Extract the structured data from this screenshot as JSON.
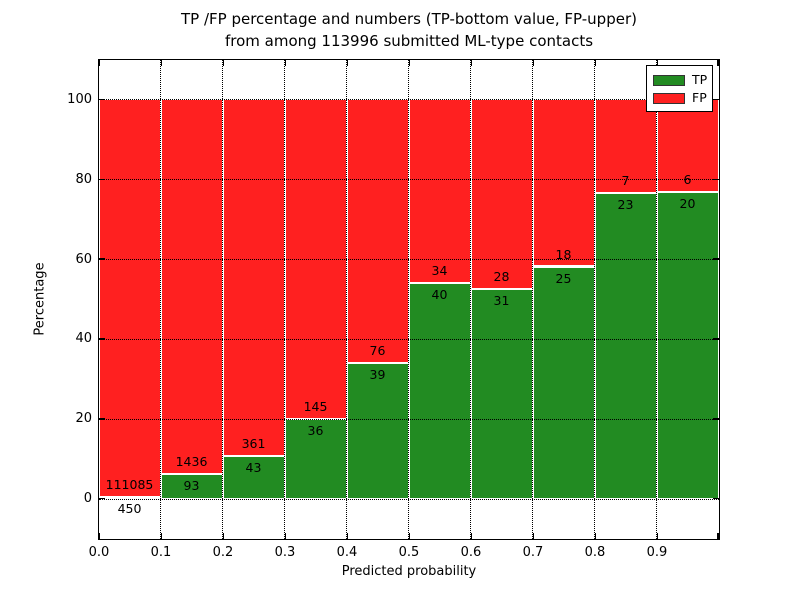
{
  "chart": {
    "title_line1": "TP /FP percentage and numbers (TP-bottom value, FP-upper)",
    "title_line2": "from among 113996 submitted ML-type contacts",
    "xlabel": "Predicted probability",
    "ylabel": "Percentage",
    "legend_items": [
      {
        "label": "TP",
        "color": "#228b22"
      },
      {
        "label": "FP",
        "color": "#ff2020"
      }
    ]
  },
  "chart_data": {
    "type": "bar",
    "stacked": true,
    "title": "TP /FP percentage and numbers (TP-bottom value, FP-upper) from among 113996 submitted ML-type contacts",
    "xlabel": "Predicted probability",
    "ylabel": "Percentage",
    "x_ticks": [
      "0.0",
      "0.1",
      "0.2",
      "0.3",
      "0.4",
      "0.5",
      "0.6",
      "0.7",
      "0.8",
      "0.9"
    ],
    "y_ticks": [
      0,
      20,
      40,
      60,
      80,
      100
    ],
    "xlim": [
      0.0,
      1.0
    ],
    "ylim": [
      -10,
      110
    ],
    "grid": true,
    "legend_position": "upper right",
    "total_contacts": 113996,
    "categories": [
      "0.0-0.1",
      "0.1-0.2",
      "0.2-0.3",
      "0.3-0.4",
      "0.4-0.5",
      "0.5-0.6",
      "0.6-0.7",
      "0.7-0.8",
      "0.8-0.9",
      "0.9-1.0"
    ],
    "series": [
      {
        "name": "TP",
        "color": "#228b22",
        "counts": [
          450,
          93,
          43,
          36,
          39,
          40,
          31,
          25,
          23,
          20
        ],
        "pct": [
          0.4,
          6.1,
          10.6,
          19.9,
          33.9,
          54.1,
          52.5,
          58.1,
          76.7,
          76.9
        ]
      },
      {
        "name": "FP",
        "color": "#ff2020",
        "counts": [
          111085,
          1436,
          361,
          145,
          76,
          34,
          28,
          18,
          7,
          6
        ],
        "pct": [
          99.6,
          93.9,
          89.4,
          80.1,
          66.1,
          45.9,
          47.5,
          41.9,
          23.3,
          23.1
        ]
      }
    ]
  }
}
